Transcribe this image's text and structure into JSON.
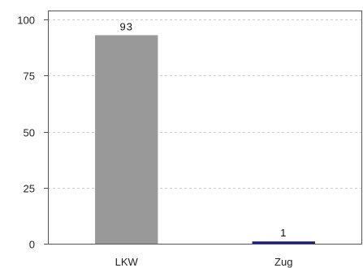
{
  "chart_data": {
    "type": "bar",
    "categories": [
      "LKW",
      "Zug"
    ],
    "values": [
      93,
      1
    ],
    "data_labels": [
      "93",
      "1"
    ],
    "bar_colors": [
      "#999999",
      "#1a1f6e"
    ],
    "ylim": [
      0,
      104
    ],
    "yticks": [
      0,
      25,
      50,
      75,
      100
    ],
    "grid": "horizontal dashed",
    "gridline_color": "#cccccc",
    "axis_color": "#555555",
    "title": "",
    "xlabel": "",
    "ylabel": ""
  }
}
